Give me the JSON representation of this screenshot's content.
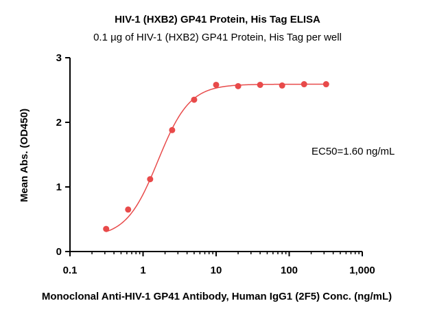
{
  "chart_data": {
    "type": "scatter",
    "title": "HIV-1 (HXB2) GP41 Protein, His Tag ELISA",
    "subtitle": "0.1 µg of HIV-1 (HXB2) GP41 Protein, His Tag per well",
    "xlabel": "Monoclonal Anti-HIV-1 GP41 Antibody, Human IgG1 (2F5) Conc. (ng/mL)",
    "ylabel": "Mean Abs. (OD450)",
    "xscale": "log",
    "xlim": [
      0.1,
      1000
    ],
    "ylim": [
      0,
      3
    ],
    "x_ticks": [
      0.1,
      1,
      10,
      100,
      1000
    ],
    "x_tick_labels": [
      "0.1",
      "1",
      "10",
      "100",
      "1,000"
    ],
    "y_ticks": [
      0,
      1,
      2,
      3
    ],
    "y_tick_labels": [
      "0",
      "1",
      "2",
      "3"
    ],
    "annotation": "EC50=1.60 ng/mL",
    "series": [
      {
        "name": "Mean Abs. (OD450)",
        "color": "#e84a4a",
        "x": [
          0.3125,
          0.625,
          1.25,
          2.5,
          5,
          10,
          20,
          40,
          80,
          160,
          320
        ],
        "y": [
          0.35,
          0.65,
          1.12,
          1.88,
          2.35,
          2.58,
          2.56,
          2.58,
          2.57,
          2.59,
          2.59
        ]
      }
    ],
    "fit": {
      "model": "4PL",
      "bottom": 0.22,
      "top": 2.59,
      "ec50": 1.6,
      "hill": 2.0
    }
  }
}
